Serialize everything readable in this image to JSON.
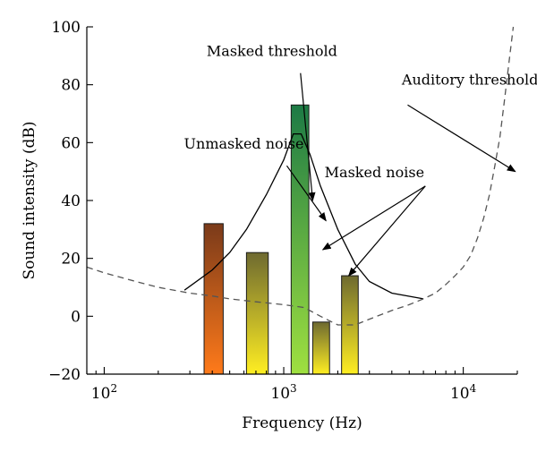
{
  "chart_data": {
    "type": "bar",
    "xlabel": "Frequency (Hz)",
    "ylabel": "Sound intensity (dB)",
    "xscale": "log",
    "xlim": [
      80,
      20000
    ],
    "ylim": [
      -20,
      100
    ],
    "grid": false,
    "yticks": [
      -20,
      0,
      20,
      40,
      60,
      80,
      100
    ],
    "xticks": [
      {
        "value": 100,
        "base": "10",
        "exp": "2"
      },
      {
        "value": 1000,
        "base": "10",
        "exp": "3"
      },
      {
        "value": 10000,
        "base": "10",
        "exp": "4"
      }
    ],
    "bars": [
      {
        "name": "Unmasked noise",
        "x_from": 360,
        "x_to": 460,
        "value": 32,
        "gradient": [
          "#7a3a1a",
          "#ff7a1a"
        ]
      },
      {
        "name": "Masked noise",
        "x_from": 620,
        "x_to": 820,
        "value": 22,
        "gradient": [
          "#6e6a30",
          "#ffee22"
        ]
      },
      {
        "name": "Masked noise",
        "x_from": 1100,
        "x_to": 1380,
        "value": 73,
        "gradient": [
          "#1d7a45",
          "#9fe040"
        ]
      },
      {
        "name": "Masked noise",
        "x_from": 1450,
        "x_to": 1800,
        "value": -2,
        "gradient": [
          "#6e6a30",
          "#ffee22"
        ]
      },
      {
        "name": "Masked noise",
        "x_from": 2100,
        "x_to": 2600,
        "value": 14,
        "gradient": [
          "#6e6a30",
          "#ffee22"
        ]
      }
    ],
    "masked_threshold": {
      "x": [
        280,
        400,
        500,
        620,
        800,
        1000,
        1130,
        1250,
        1400,
        1600,
        2000,
        2500,
        3000,
        4000,
        6000
      ],
      "y": [
        9,
        16,
        22,
        30,
        42,
        54,
        63,
        63,
        56,
        45,
        30,
        18,
        12,
        8,
        6
      ]
    },
    "auditory_threshold": {
      "x": [
        80,
        100,
        150,
        200,
        300,
        400,
        500,
        700,
        1000,
        1300,
        1600,
        2000,
        2500,
        3000,
        4000,
        5000,
        6000,
        7000,
        8000,
        9000,
        10000,
        11000,
        12000,
        13000,
        14000,
        15000,
        16000,
        17000,
        18000,
        19000
      ],
      "y": [
        17,
        15,
        12,
        10,
        8,
        7,
        6,
        5,
        4,
        3,
        0,
        -3,
        -3,
        -1,
        2,
        4,
        6,
        8,
        11,
        14,
        17,
        21,
        27,
        34,
        42,
        52,
        62,
        75,
        88,
        100
      ]
    },
    "annotations": [
      {
        "text": "Masked threshold",
        "label_at": [
          860,
          90
        ],
        "arrows": [
          {
            "from": [
              1240,
              84
            ],
            "to": [
              1450,
              40
            ]
          }
        ]
      },
      {
        "text": "Unmasked noise",
        "label_at": [
          600,
          58
        ],
        "arrows": [
          {
            "from": [
              1040,
              52
            ],
            "to": [
              1720,
              33
            ]
          }
        ]
      },
      {
        "text": "Masked noise",
        "label_at": [
          3200,
          48
        ],
        "arrows": [
          {
            "from": [
              6150,
              45
            ],
            "to": [
              1650,
              23
            ]
          },
          {
            "from": [
              6150,
              45
            ],
            "to": [
              2300,
              14
            ]
          }
        ]
      },
      {
        "text": "Auditory threshold",
        "label_at": [
          10900,
          80
        ],
        "arrows": [
          {
            "from": [
              4900,
              73
            ],
            "to": [
              19500,
              50
            ]
          }
        ]
      }
    ]
  }
}
